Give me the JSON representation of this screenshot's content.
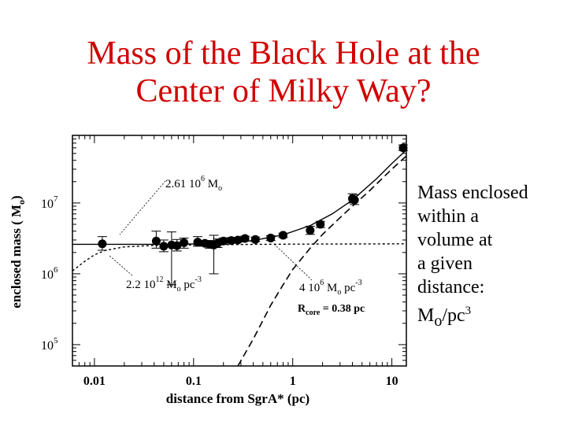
{
  "title": {
    "line1": "Mass of the Black Hole at the",
    "line2": "Center of Milky Way?"
  },
  "side_note": {
    "line1": "Mass enclosed",
    "line2": "within a",
    "line3": "volume at",
    "line4": "a  given",
    "line5": "distance:",
    "line6_base": "M",
    "line6_sub": "o",
    "line6_rest": "/pc",
    "line6_sup": "3"
  },
  "colors": {
    "title": "#d00000",
    "ink": "#000000"
  },
  "chart_data": {
    "type": "scatter",
    "xlabel": "distance from SgrA* (pc)",
    "ylabel": "enclosed mass ( M",
    "ylabel_sub": "o",
    "ylabel_close": ")",
    "x_scale": "log",
    "y_scale": "log",
    "xlim": [
      0.006,
      14
    ],
    "ylim": [
      50000,
      90000000
    ],
    "xticks": [
      {
        "value": 0.01,
        "label": "0.01"
      },
      {
        "value": 0.1,
        "label": "0.1"
      },
      {
        "value": 1,
        "label": "1"
      },
      {
        "value": 10,
        "label": "10"
      }
    ],
    "yticks": [
      {
        "value": 100000,
        "base": "10",
        "exp": "5"
      },
      {
        "value": 1000000,
        "base": "10",
        "exp": "6"
      },
      {
        "value": 10000000,
        "base": "10",
        "exp": "7"
      }
    ],
    "grid": false,
    "points": [
      {
        "x": 0.012,
        "y": 2650000,
        "err": [
          2150000,
          3350000
        ]
      },
      {
        "x": 0.042,
        "y": 2900000,
        "err": [
          2300000,
          4000000
        ]
      },
      {
        "x": 0.05,
        "y": 2450000,
        "err": [
          2050000,
          3000000
        ]
      },
      {
        "x": 0.06,
        "y": 2550000,
        "err": [
          700000,
          3900000
        ]
      },
      {
        "x": 0.068,
        "y": 2500000,
        "err": [
          2100000,
          3050000
        ]
      },
      {
        "x": 0.08,
        "y": 2750000,
        "err": [
          2300000,
          3200000
        ]
      },
      {
        "x": 0.11,
        "y": 2800000,
        "err": [
          2450000,
          3350000
        ]
      },
      {
        "x": 0.13,
        "y": 2700000,
        "err": [
          2500000,
          2950000
        ]
      },
      {
        "x": 0.145,
        "y": 2600000,
        "err": [
          2300000,
          2950000
        ]
      },
      {
        "x": 0.16,
        "y": 2550000,
        "err": [
          1000000,
          3500000
        ]
      },
      {
        "x": 0.175,
        "y": 2700000,
        "err": [
          2350000,
          3100000
        ]
      },
      {
        "x": 0.2,
        "y": 2900000,
        "err": [
          2600000,
          3200000
        ]
      },
      {
        "x": 0.24,
        "y": 2950000,
        "err": [
          2700000,
          3250000
        ]
      },
      {
        "x": 0.28,
        "y": 3000000,
        "err": [
          2800000,
          3250000
        ]
      },
      {
        "x": 0.33,
        "y": 3150000,
        "err": [
          2900000,
          3400000
        ]
      },
      {
        "x": 0.42,
        "y": 3050000,
        "err": [
          2850000,
          3300000
        ]
      },
      {
        "x": 0.6,
        "y": 3200000,
        "err": [
          2950000,
          3450000
        ]
      },
      {
        "x": 0.8,
        "y": 3500000,
        "err": [
          3250000,
          3750000
        ]
      },
      {
        "x": 1.5,
        "y": 4100000,
        "err": [
          3600000,
          4700000
        ]
      },
      {
        "x": 1.9,
        "y": 5000000,
        "err": [
          4500000,
          5500000
        ]
      },
      {
        "x": 4.0,
        "y": 11500000,
        "err": [
          10000000,
          13500000
        ]
      },
      {
        "x": 4.2,
        "y": 11000000,
        "err": [
          9500000,
          13000000
        ]
      },
      {
        "x": 13.0,
        "y": 60000000,
        "err": [
          55000000,
          66000000
        ]
      }
    ],
    "curves": {
      "solid_fit": [
        [
          0.006,
          2610000
        ],
        [
          0.05,
          2610000
        ],
        [
          0.1,
          2640000
        ],
        [
          0.2,
          2700000
        ],
        [
          0.4,
          2950000
        ],
        [
          0.8,
          3550000
        ],
        [
          1.5,
          4800000
        ],
        [
          2.5,
          7000000
        ],
        [
          4,
          11000000
        ],
        [
          7,
          22000000
        ],
        [
          10,
          36000000
        ],
        [
          14,
          56000000
        ]
      ],
      "dotted_cluster": [
        [
          0.006,
          1100000
        ],
        [
          0.008,
          1500000
        ],
        [
          0.01,
          1850000
        ],
        [
          0.013,
          2150000
        ],
        [
          0.02,
          2400000
        ],
        [
          0.04,
          2520000
        ],
        [
          0.1,
          2560000
        ],
        [
          0.4,
          2600000
        ],
        [
          1,
          2620000
        ],
        [
          14,
          2650000
        ]
      ],
      "dashed_cluster": [
        [
          0.28,
          50000
        ],
        [
          0.4,
          120000
        ],
        [
          0.6,
          360000
        ],
        [
          0.8,
          700000
        ],
        [
          1,
          1150000
        ],
        [
          1.5,
          2300000
        ],
        [
          2,
          3600000
        ],
        [
          3,
          6200000
        ],
        [
          4,
          9000000
        ],
        [
          6,
          15000000
        ],
        [
          10,
          30000000
        ],
        [
          14,
          46000000
        ]
      ]
    },
    "annotations": {
      "bh_mass": {
        "prefix": "2.61 10",
        "exp": "6",
        "unit": " M",
        "sub": "o"
      },
      "cusp_density": {
        "prefix": "2.2 10",
        "exp": "12",
        "unit": " M",
        "sub": "o",
        "rest": " pc",
        "rest_sup": "-3"
      },
      "core_density": {
        "prefix": "4 10",
        "exp": "6",
        "unit": " M",
        "sub": "o",
        "rest": " pc",
        "rest_sup": "-3"
      },
      "core_radius": {
        "label": "R",
        "sub": "core",
        "value": " = 0.38 pc"
      }
    }
  }
}
